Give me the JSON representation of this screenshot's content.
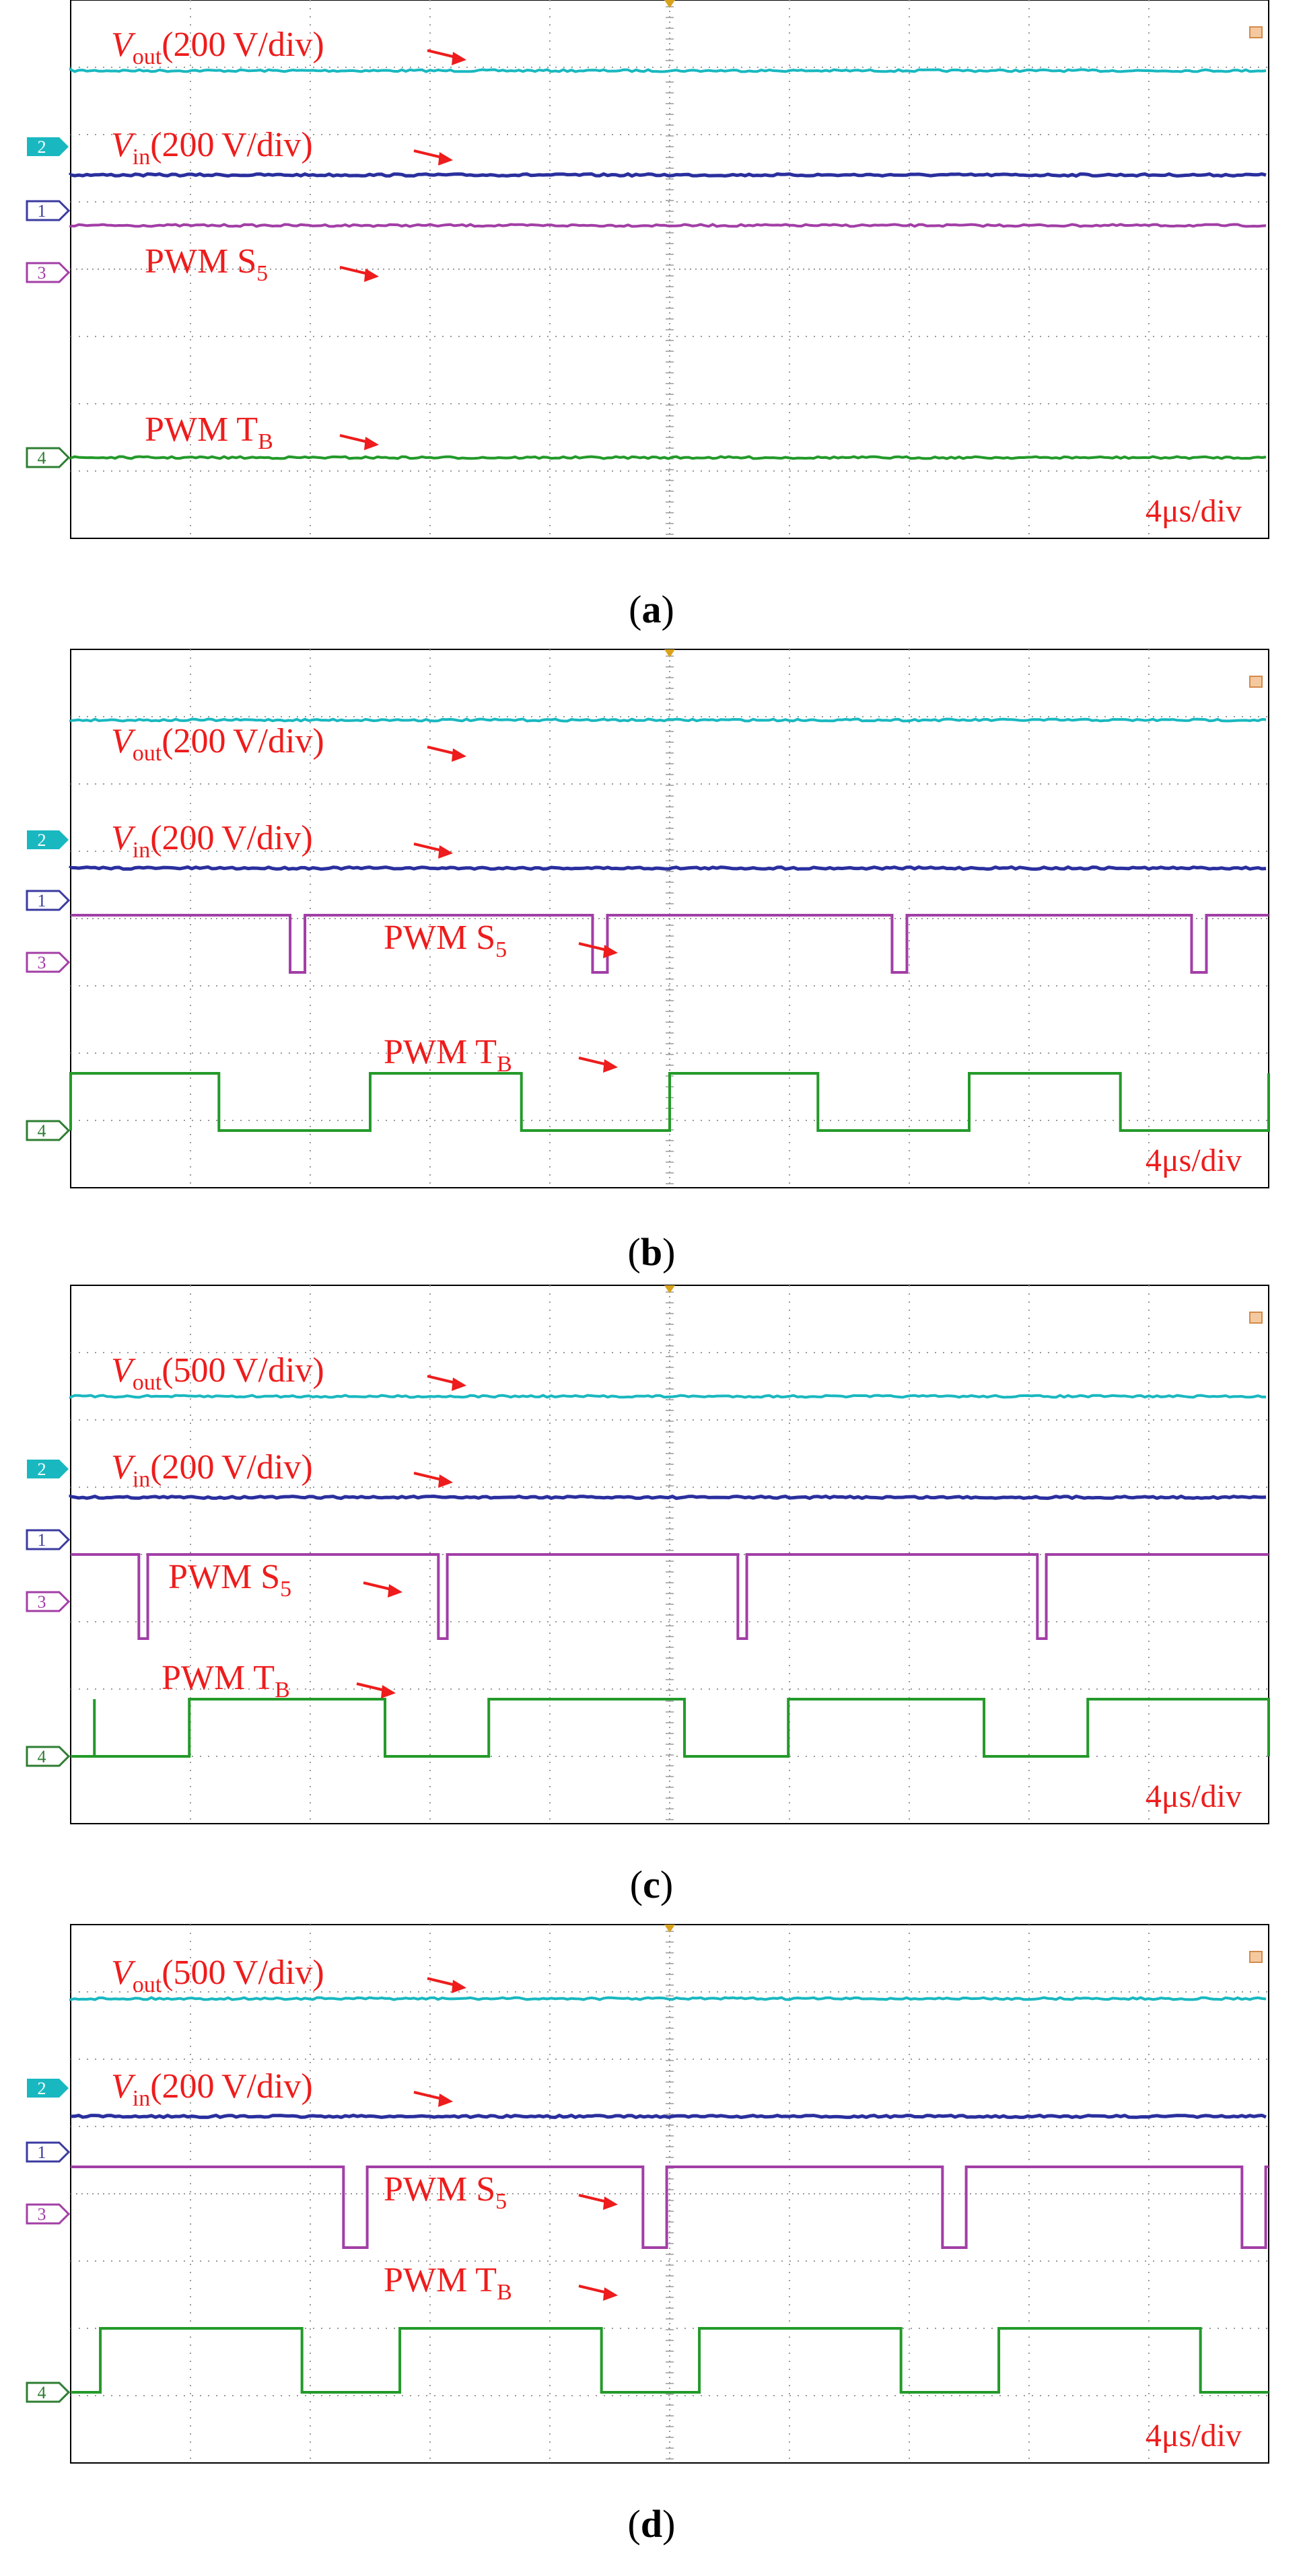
{
  "figure": {
    "colors": {
      "vout": "#19b8c0",
      "vin": "#2a2f9e",
      "pwm_s5": "#a23ea6",
      "pwm_tb": "#239a2a",
      "annotation": "#ee1c1c",
      "grid": "#9a9a9a",
      "frame": "#000000",
      "trigger": "#d9a21b",
      "ch1": "#3a3aa0",
      "ch2": "#19b8c0",
      "ch3": "#a23ea6",
      "ch4": "#2e7d32"
    },
    "channel_markers": [
      "1",
      "2",
      "3",
      "4"
    ],
    "icons": {
      "trigger_marker": "trigger-icon",
      "corner_marker": "corner-icon",
      "arrow": "arrow-icon"
    }
  },
  "chart_data": [
    {
      "type": "line",
      "panel": "a",
      "caption_letter": "a",
      "time_scale": "4μs/div",
      "x_range_div": [
        0,
        10
      ],
      "y_range_div": [
        0,
        8
      ],
      "legend": [
        {
          "label_main": "V",
          "label_sub": "out",
          "label_rest": "(200 V/div)"
        },
        {
          "label_main": "V",
          "label_sub": "in",
          "label_rest": "(200 V/div)"
        },
        {
          "label_main": "PWM S",
          "label_sub": "5",
          "label_rest": ""
        },
        {
          "label_main": "PWM T",
          "label_sub": "B",
          "label_rest": ""
        }
      ],
      "series": [
        {
          "name": "Vout",
          "baseline_div": 6.95,
          "pulses": []
        },
        {
          "name": "Vin",
          "baseline_div": 5.4,
          "pulses": []
        },
        {
          "name": "PWM S5",
          "baseline_div": 4.65,
          "pulses": []
        },
        {
          "name": "PWM TB",
          "baseline_div": 1.2,
          "pulses": []
        }
      ]
    },
    {
      "type": "line",
      "panel": "b",
      "caption_letter": "b",
      "time_scale": "4μs/div",
      "x_range_div": [
        0,
        10
      ],
      "y_range_div": [
        0,
        8
      ],
      "legend": [
        {
          "label_main": "V",
          "label_sub": "out",
          "label_rest": "(200 V/div)"
        },
        {
          "label_main": "V",
          "label_sub": "in",
          "label_rest": "(200 V/div)"
        },
        {
          "label_main": "PWM S",
          "label_sub": "5",
          "label_rest": ""
        },
        {
          "label_main": "PWM T",
          "label_sub": "B",
          "label_rest": ""
        }
      ],
      "series": [
        {
          "name": "Vout",
          "baseline_div": 6.95,
          "pulses": []
        },
        {
          "name": "Vin",
          "baseline_div": 4.75,
          "pulses": []
        },
        {
          "name": "PWM S5",
          "baseline_div": 4.05,
          "low_div": 3.2,
          "pulses": [
            [
              3.7,
              3.95
            ],
            [
              8.8,
              9.05
            ],
            [
              13.85,
              14.1
            ],
            [
              18.9,
              19.15
            ]
          ]
        },
        {
          "name": "PWM TB",
          "baseline_div": 0.85,
          "high_div": 1.7,
          "pulses": [
            [
              0,
              2.5
            ],
            [
              5.05,
              7.6
            ],
            [
              10.1,
              12.6
            ],
            [
              15.15,
              17.7
            ],
            [
              20.2,
              20.2
            ]
          ]
        }
      ]
    },
    {
      "type": "line",
      "panel": "c",
      "caption_letter": "c",
      "time_scale": "4μs/div",
      "x_range_div": [
        0,
        10
      ],
      "y_range_div": [
        0,
        8
      ],
      "legend": [
        {
          "label_main": "V",
          "label_sub": "out",
          "label_rest": "(500 V/div)"
        },
        {
          "label_main": "V",
          "label_sub": "in",
          "label_rest": "(200 V/div)"
        },
        {
          "label_main": "PWM S",
          "label_sub": "5",
          "label_rest": ""
        },
        {
          "label_main": "PWM T",
          "label_sub": "B",
          "label_rest": ""
        }
      ],
      "series": [
        {
          "name": "Vout",
          "baseline_div": 6.35,
          "pulses": []
        },
        {
          "name": "Vin",
          "baseline_div": 4.85,
          "pulses": []
        },
        {
          "name": "PWM S5",
          "baseline_div": 4.0,
          "low_div": 2.75,
          "pulses": [
            [
              1.15,
              1.3
            ],
            [
              6.2,
              6.35
            ],
            [
              11.25,
              11.4
            ],
            [
              16.3,
              16.45
            ]
          ]
        },
        {
          "name": "PWM TB",
          "baseline_div": 1.0,
          "high_div": 1.85,
          "pulses": [
            [
              0.4,
              0.4
            ],
            [
              2.0,
              5.3
            ],
            [
              7.05,
              10.35
            ],
            [
              12.1,
              15.4
            ],
            [
              17.15,
              20.2
            ]
          ]
        }
      ]
    },
    {
      "type": "line",
      "panel": "d",
      "caption_letter": "d",
      "time_scale": "4μs/div",
      "x_range_div": [
        0,
        10
      ],
      "y_range_div": [
        0,
        8
      ],
      "legend": [
        {
          "label_main": "V",
          "label_sub": "out",
          "label_rest": "(500 V/div)"
        },
        {
          "label_main": "V",
          "label_sub": "in",
          "label_rest": "(200 V/div)"
        },
        {
          "label_main": "PWM S",
          "label_sub": "5",
          "label_rest": ""
        },
        {
          "label_main": "PWM T",
          "label_sub": "B",
          "label_rest": ""
        }
      ],
      "series": [
        {
          "name": "Vout",
          "baseline_div": 6.9,
          "pulses": []
        },
        {
          "name": "Vin",
          "baseline_div": 5.15,
          "pulses": []
        },
        {
          "name": "PWM S5",
          "baseline_div": 4.4,
          "low_div": 3.2,
          "pulses": [
            [
              4.6,
              5.0
            ],
            [
              9.65,
              10.05
            ],
            [
              14.7,
              15.1
            ],
            [
              19.75,
              20.15
            ]
          ]
        },
        {
          "name": "PWM TB",
          "baseline_div": 1.05,
          "high_div": 2.0,
          "pulses": [
            [
              0.5,
              3.9
            ],
            [
              5.55,
              8.95
            ],
            [
              10.6,
              14.0
            ],
            [
              15.65,
              19.05
            ]
          ]
        }
      ]
    }
  ]
}
